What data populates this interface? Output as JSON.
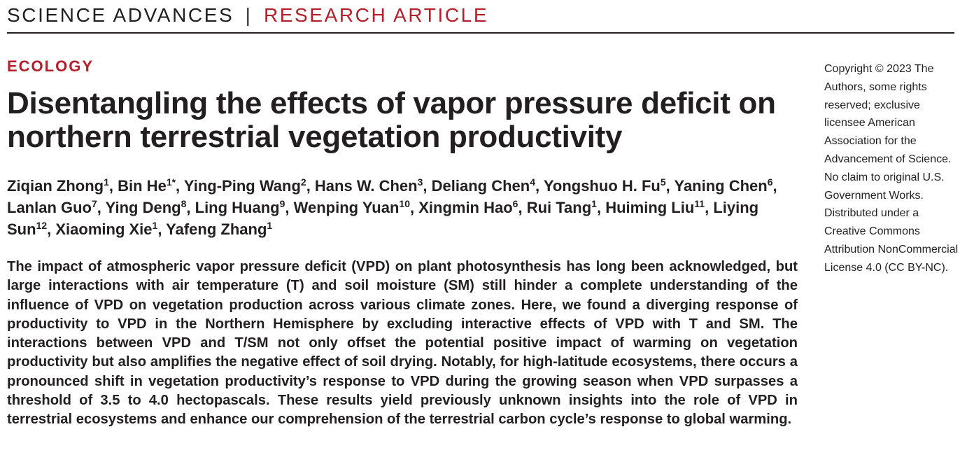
{
  "header": {
    "journal": "SCIENCE ADVANCES",
    "separator": "|",
    "article_type": "RESEARCH ARTICLE"
  },
  "section": "ECOLOGY",
  "title": "Disentangling the effects of vapor pressure deficit on northern terrestrial vegetation productivity",
  "authors": [
    {
      "name": "Ziqian Zhong",
      "aff": "1"
    },
    {
      "name": "Bin He",
      "aff": "1*"
    },
    {
      "name": "Ying-Ping Wang",
      "aff": "2"
    },
    {
      "name": "Hans W. Chen",
      "aff": "3"
    },
    {
      "name": "Deliang Chen",
      "aff": "4"
    },
    {
      "name": "Yongshuo H. Fu",
      "aff": "5"
    },
    {
      "name": "Yaning Chen",
      "aff": "6"
    },
    {
      "name": "Lanlan Guo",
      "aff": "7"
    },
    {
      "name": "Ying Deng",
      "aff": "8"
    },
    {
      "name": "Ling Huang",
      "aff": "9"
    },
    {
      "name": "Wenping Yuan",
      "aff": "10"
    },
    {
      "name": "Xingmin Hao",
      "aff": "6"
    },
    {
      "name": "Rui Tang",
      "aff": "1"
    },
    {
      "name": "Huiming Liu",
      "aff": "11"
    },
    {
      "name": "Liying Sun",
      "aff": "12"
    },
    {
      "name": "Xiaoming Xie",
      "aff": "1"
    },
    {
      "name": "Yafeng Zhang",
      "aff": "1"
    }
  ],
  "abstract": "The impact of atmospheric vapor pressure deficit (VPD) on plant photosynthesis has long been acknowledged, but large interactions with air temperature (T) and soil moisture (SM) still hinder a complete understanding of the influence of VPD on vegetation production across various climate zones. Here, we found a diverging response of productivity to VPD in the Northern Hemisphere by excluding interactive effects of VPD with T and SM. The interactions between VPD and T/SM not only offset the potential positive impact of warming on vegetation productivity but also amplifies the negative effect of soil drying. Notably, for high-latitude ecosystems, there occurs a pronounced shift in vegetation productivity’s response to VPD during the growing season when VPD surpasses a threshold of 3.5 to 4.0 hectopascals. These results yield previously unknown insights into the role of VPD in terrestrial ecosystems and enhance our comprehension of the terrestrial carbon cycle’s response to global warming.",
  "copyright": "Copyright © 2023 The Authors, some rights reserved; exclusive licensee American Association for the Advancement of Science. No claim to original U.S. Government Works. Distributed under a Creative Commons Attribution NonCommercial License 4.0 (CC BY-NC).",
  "colors": {
    "accent": "#b3202a",
    "text": "#231f20"
  }
}
